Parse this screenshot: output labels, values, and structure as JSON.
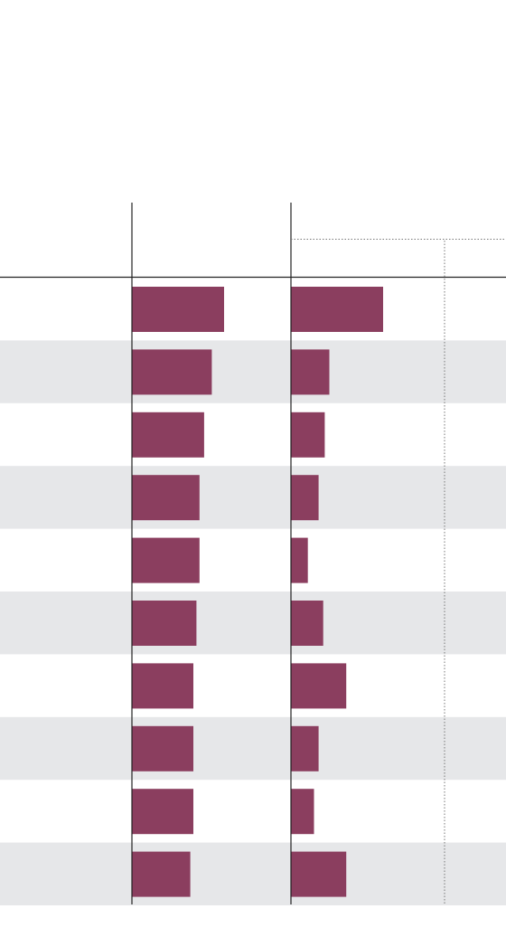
{
  "colors": {
    "bar": "#8b3e5f",
    "stripe": "#e6e7e9",
    "axis": "#222222",
    "dotted_rule": "#777777"
  },
  "chart_data": [
    {
      "type": "bar",
      "orientation": "horizontal",
      "categories": [
        "",
        "",
        "",
        "",
        "",
        "",
        "",
        "",
        "",
        ""
      ],
      "values": [
        6.0,
        5.2,
        4.7,
        4.4,
        4.4,
        4.2,
        4.0,
        4.0,
        4.0,
        3.8
      ],
      "xlim": [
        0,
        10
      ],
      "grid": false,
      "row_striping": "alternate"
    },
    {
      "type": "bar",
      "orientation": "horizontal",
      "categories": [
        "",
        "",
        "",
        "",
        "",
        "",
        "",
        "",
        "",
        ""
      ],
      "values": [
        6.0,
        2.5,
        2.2,
        1.8,
        1.1,
        2.1,
        3.6,
        1.8,
        1.5,
        3.6
      ],
      "xlim": [
        0,
        14
      ],
      "reference_line": 10,
      "grid": false,
      "row_striping": "alternate"
    }
  ]
}
